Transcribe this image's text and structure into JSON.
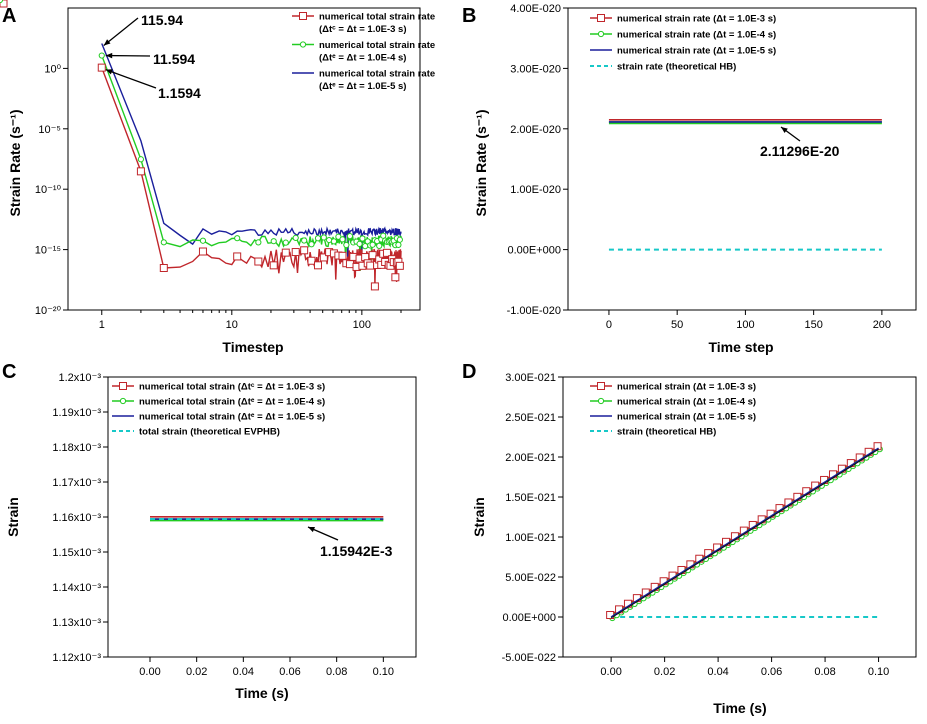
{
  "chart_data": [
    {
      "panel": "A",
      "type": "line",
      "xscale": "log",
      "yscale": "log",
      "xlabel": "Timestep",
      "ylabel": "Strain Rate (s⁻¹)",
      "xlim": [
        0.55,
        280
      ],
      "ylim": [
        1e-20,
        100000.0
      ],
      "xticks": [
        1,
        10,
        100
      ],
      "xticklabels": [
        "1",
        "10",
        "100"
      ],
      "yticks": [
        1e-20,
        1e-15,
        1e-10,
        1e-05,
        1
      ],
      "yticklabels": [
        "10⁻²⁰",
        "10⁻¹⁵",
        "10⁻¹⁰",
        "10⁻⁵",
        "10⁰"
      ],
      "legend": {
        "position": "top-right",
        "entries": [
          {
            "label": "numerical total strain rate",
            "sublabel": "(Δtᶜ = Δt = 1.0E-3 s)",
            "color": "#c0262b",
            "marker": "square"
          },
          {
            "label": "numerical total strain rate",
            "sublabel": "(Δtᵉ = Δt = 1.0E-4 s)",
            "color": "#22cc22",
            "marker": "circle"
          },
          {
            "label": "numerical total strain rate",
            "sublabel": "(Δtᵉ = Δt = 1.0E-5 s)",
            "color": "#1a1f9c",
            "marker": "none"
          }
        ]
      },
      "annotations": [
        "115.94",
        "11.594",
        "1.1594"
      ],
      "series": [
        {
          "name": "Δt = 1.0E-3 s",
          "start": 1.1594,
          "step2": 3e-09,
          "step3": 3e-17,
          "noise_level": 2e-16,
          "noise_range": 1.5
        },
        {
          "name": "Δt = 1.0E-4 s",
          "start": 11.594,
          "step2": 3e-08,
          "step3": 4e-15,
          "noise_level": 5e-15,
          "noise_range": 0.9
        },
        {
          "name": "Δt = 1.0E-5 s",
          "start": 115.94,
          "step2": 1e-06,
          "step3": 1.5e-13,
          "noise_level": 3e-14,
          "noise_range": 0.6
        }
      ]
    },
    {
      "panel": "B",
      "type": "line",
      "xlabel": "Time step",
      "ylabel": "Strain Rate (s⁻¹)",
      "xlim": [
        -30,
        225
      ],
      "ylim": [
        -1e-20,
        4e-20
      ],
      "xticks": [
        0,
        50,
        100,
        150,
        200
      ],
      "xticklabels": [
        "0",
        "50",
        "100",
        "150",
        "200"
      ],
      "yticks": [
        -1e-20,
        0,
        1e-20,
        2e-20,
        3e-20,
        4e-20
      ],
      "yticklabels": [
        "-1.00E-020",
        "0.00E+000",
        "1.00E-020",
        "2.00E-020",
        "3.00E-020",
        "4.00E-020"
      ],
      "legend": {
        "position": "top-left",
        "entries": [
          {
            "label": "numerical strain rate (Δt = 1.0E-3 s)",
            "color": "#c0262b",
            "marker": "square"
          },
          {
            "label": "numerical strain rate (Δt = 1.0E-4 s)",
            "color": "#22cc22",
            "marker": "circle"
          },
          {
            "label": "numerical strain rate (Δt = 1.0E-5 s)",
            "color": "#1a1f9c",
            "marker": "none"
          },
          {
            "label": "strain rate (theoretical HB)",
            "color": "#17c8c8",
            "marker": "dash"
          }
        ]
      },
      "annotations": [
        "2.11296E-20"
      ],
      "series": [
        {
          "name": "Δt = 1.0E-3 s",
          "x": [
            0,
            200
          ],
          "y": [
            2.11296e-20,
            2.11296e-20
          ]
        },
        {
          "name": "Δt = 1.0E-4 s",
          "x": [
            0,
            200
          ],
          "y": [
            2.11296e-20,
            2.11296e-20
          ]
        },
        {
          "name": "Δt = 1.0E-5 s",
          "x": [
            0,
            200
          ],
          "y": [
            2.11296e-20,
            2.11296e-20
          ]
        },
        {
          "name": "theoretical HB",
          "x": [
            0,
            200
          ],
          "y": [
            0,
            0
          ]
        }
      ]
    },
    {
      "panel": "C",
      "type": "line",
      "xlabel": "Time (s)",
      "ylabel": "Strain",
      "xlim": [
        -0.018,
        0.114
      ],
      "ylim": [
        0.00112,
        0.0012
      ],
      "xticks": [
        0,
        0.02,
        0.04,
        0.06,
        0.08,
        0.1
      ],
      "xticklabels": [
        "0.00",
        "0.02",
        "0.04",
        "0.06",
        "0.08",
        "0.10"
      ],
      "yticks": [
        0.00112,
        0.00113,
        0.00114,
        0.00115,
        0.00116,
        0.00117,
        0.00118,
        0.00119,
        0.0012
      ],
      "yticklabels": [
        "1.12x10⁻³",
        "1.13x10⁻³",
        "1.14x10⁻³",
        "1.15x10⁻³",
        "1.16x10⁻³",
        "1.17x10⁻³",
        "1.18x10⁻³",
        "1.19x10⁻³",
        "1.2x10⁻³"
      ],
      "legend": {
        "position": "top-left",
        "entries": [
          {
            "label": "numerical total strain (Δtᶜ = Δt = 1.0E-3 s)",
            "color": "#c0262b",
            "marker": "square"
          },
          {
            "label": "numerical total strain (Δtᵉ = Δt = 1.0E-4 s)",
            "color": "#22cc22",
            "marker": "circle"
          },
          {
            "label": "numerical total strain (Δtᵉ = Δt = 1.0E-5 s)",
            "color": "#1a1f9c",
            "marker": "none"
          },
          {
            "label": "total strain (theoretical EVPHB)",
            "color": "#17c8c8",
            "marker": "dash"
          }
        ]
      },
      "annotations": [
        "1.15942E-3"
      ],
      "series": [
        {
          "name": "Δt = 1.0E-3 s",
          "x": [
            0,
            0.1
          ],
          "y": [
            0.00115942,
            0.00115942
          ]
        },
        {
          "name": "Δt = 1.0E-4 s",
          "x": [
            0,
            0.1
          ],
          "y": [
            0.00115942,
            0.00115942
          ]
        },
        {
          "name": "Δt = 1.0E-5 s",
          "x": [
            0,
            0.1
          ],
          "y": [
            0.00115942,
            0.00115942
          ]
        },
        {
          "name": "theoretical EVPHB",
          "x": [
            0,
            0.1
          ],
          "y": [
            0.00115942,
            0.00115942
          ]
        }
      ]
    },
    {
      "panel": "D",
      "type": "line",
      "xlabel": "Time (s)",
      "ylabel": "Strain",
      "xlim": [
        -0.018,
        0.114
      ],
      "ylim": [
        -5e-22,
        3e-21
      ],
      "xticks": [
        0,
        0.02,
        0.04,
        0.06,
        0.08,
        0.1
      ],
      "xticklabels": [
        "0.00",
        "0.02",
        "0.04",
        "0.06",
        "0.08",
        "0.10"
      ],
      "yticks": [
        -5e-22,
        0,
        5e-22,
        1e-21,
        1.5e-21,
        2e-21,
        2.5e-21,
        3e-21
      ],
      "yticklabels": [
        "-5.00E-022",
        "0.00E+000",
        "5.00E-022",
        "1.00E-021",
        "1.50E-021",
        "2.00E-021",
        "2.50E-021",
        "3.00E-021"
      ],
      "legend": {
        "position": "top-left",
        "entries": [
          {
            "label": "numerical strain (Δt = 1.0E-3 s)",
            "color": "#c0262b",
            "marker": "square"
          },
          {
            "label": "numerical strain (Δt = 1.0E-4 s)",
            "color": "#22cc22",
            "marker": "circle"
          },
          {
            "label": "numerical strain (Δt = 1.0E-5 s)",
            "color": "#1a1f9c",
            "marker": "none"
          },
          {
            "label": "strain (theoretical HB)",
            "color": "#17c8c8",
            "marker": "dash"
          }
        ]
      },
      "annotations": [],
      "series": [
        {
          "name": "Δt = 1.0E-3 s",
          "x": [
            0,
            0.1
          ],
          "y": [
            0,
            2.11e-21
          ]
        },
        {
          "name": "Δt = 1.0E-4 s",
          "x": [
            0,
            0.1
          ],
          "y": [
            0,
            2.11e-21
          ]
        },
        {
          "name": "Δt = 1.0E-5 s",
          "x": [
            0,
            0.1
          ],
          "y": [
            0,
            2.11e-21
          ]
        },
        {
          "name": "theoretical HB",
          "x": [
            0,
            0.1
          ],
          "y": [
            0,
            0
          ]
        }
      ]
    }
  ]
}
